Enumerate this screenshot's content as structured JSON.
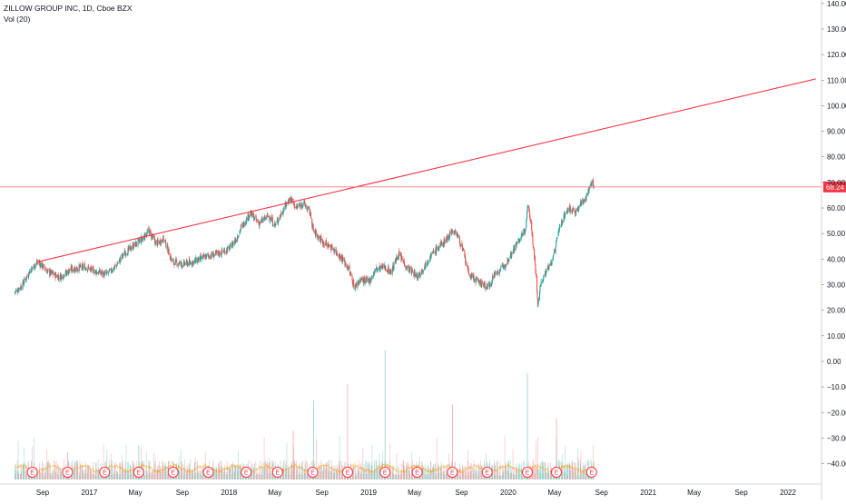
{
  "header": {
    "symbol_line": "ZILLOW GROUP INC, 1D, Cboe BZX",
    "volume_label": "Vol (20)"
  },
  "colors": {
    "up": "#26a69a",
    "down": "#ef5350",
    "trendline": "#f23645",
    "price_line": "#f77c80",
    "earnings_marker": "#f23645",
    "grid": "#e0e3eb",
    "axis_text": "#131722",
    "volume_ma": "#ff9800"
  },
  "chart_data": {
    "type": "candlestick",
    "price_axis": {
      "ticks": [
        140,
        130,
        120,
        110,
        100,
        90,
        80,
        70,
        60,
        50,
        40,
        30,
        20,
        10,
        0,
        -10,
        -20,
        -30,
        -40
      ],
      "tick_labels": [
        "140.00",
        "130.00",
        "120.00",
        "110.00",
        "100.00",
        "90.00",
        "80.00",
        "70.00",
        "60.00",
        "50.00",
        "40.00",
        "30.00",
        "20.00",
        "10.00",
        "0.00",
        "−10.00",
        "−20.00",
        "−30.00",
        "−40.00"
      ],
      "range": [
        -43,
        141
      ]
    },
    "last_price": 68.24,
    "last_price_label": "68.24",
    "time_axis": {
      "ticks": [
        "2016-09-01",
        "2017-01-01",
        "2017-05-01",
        "2017-09-01",
        "2018-01-01",
        "2018-05-01",
        "2018-09-01",
        "2019-01-01",
        "2019-05-01",
        "2019-09-01",
        "2020-01-01",
        "2020-05-01",
        "2020-09-01",
        "2021-01-01",
        "2021-05-01",
        "2021-09-01",
        "2022-01-01"
      ],
      "tick_labels": [
        "Sep",
        "2017",
        "May",
        "Sep",
        "2018",
        "May",
        "Sep",
        "2019",
        "May",
        "Sep",
        "2020",
        "May",
        "Sep",
        "2021",
        "May",
        "Sep",
        "2022"
      ]
    },
    "price_path": [
      [
        "2016-06-20",
        27
      ],
      [
        "2016-07-10",
        30
      ],
      [
        "2016-08-01",
        36
      ],
      [
        "2016-08-20",
        39
      ],
      [
        "2016-09-15",
        35
      ],
      [
        "2016-10-15",
        33
      ],
      [
        "2016-11-15",
        36
      ],
      [
        "2016-12-20",
        37
      ],
      [
        "2017-01-20",
        35
      ],
      [
        "2017-02-15",
        34
      ],
      [
        "2017-03-10",
        37
      ],
      [
        "2017-04-01",
        42
      ],
      [
        "2017-04-25",
        45
      ],
      [
        "2017-05-20",
        48
      ],
      [
        "2017-06-05",
        51
      ],
      [
        "2017-06-25",
        46
      ],
      [
        "2017-07-15",
        48
      ],
      [
        "2017-08-05",
        39
      ],
      [
        "2017-09-01",
        38
      ],
      [
        "2017-10-01",
        39
      ],
      [
        "2017-11-01",
        41
      ],
      [
        "2017-12-01",
        42
      ],
      [
        "2018-01-01",
        44
      ],
      [
        "2018-01-20",
        48
      ],
      [
        "2018-02-01",
        52
      ],
      [
        "2018-02-25",
        58
      ],
      [
        "2018-03-20",
        54
      ],
      [
        "2018-04-15",
        57
      ],
      [
        "2018-05-01",
        53
      ],
      [
        "2018-05-25",
        60
      ],
      [
        "2018-06-10",
        64
      ],
      [
        "2018-06-25",
        60
      ],
      [
        "2018-07-15",
        62
      ],
      [
        "2018-08-01",
        58
      ],
      [
        "2018-08-10",
        51
      ],
      [
        "2018-09-01",
        47
      ],
      [
        "2018-10-01",
        44
      ],
      [
        "2018-10-25",
        40
      ],
      [
        "2018-11-10",
        36
      ],
      [
        "2018-11-25",
        29
      ],
      [
        "2018-12-10",
        32
      ],
      [
        "2019-01-01",
        31
      ],
      [
        "2019-01-20",
        36
      ],
      [
        "2019-02-10",
        37
      ],
      [
        "2019-03-01",
        35
      ],
      [
        "2019-03-20",
        42
      ],
      [
        "2019-04-10",
        37
      ],
      [
        "2019-05-10",
        33
      ],
      [
        "2019-06-10",
        41
      ],
      [
        "2019-07-05",
        45
      ],
      [
        "2019-07-25",
        48
      ],
      [
        "2019-08-05",
        51
      ],
      [
        "2019-08-20",
        50
      ],
      [
        "2019-09-01",
        45
      ],
      [
        "2019-09-20",
        34
      ],
      [
        "2019-10-15",
        31
      ],
      [
        "2019-11-10",
        29
      ],
      [
        "2019-11-25",
        34
      ],
      [
        "2019-12-20",
        37
      ],
      [
        "2020-01-15",
        44
      ],
      [
        "2020-02-05",
        49
      ],
      [
        "2020-02-15",
        52
      ],
      [
        "2020-02-22",
        62
      ],
      [
        "2020-02-28",
        55
      ],
      [
        "2020-03-10",
        40
      ],
      [
        "2020-03-18",
        22
      ],
      [
        "2020-03-25",
        30
      ],
      [
        "2020-04-10",
        36
      ],
      [
        "2020-04-25",
        39
      ],
      [
        "2020-05-10",
        50
      ],
      [
        "2020-05-25",
        57
      ],
      [
        "2020-06-10",
        60
      ],
      [
        "2020-06-25",
        58
      ],
      [
        "2020-07-10",
        62
      ],
      [
        "2020-07-25",
        65
      ],
      [
        "2020-08-05",
        70
      ],
      [
        "2020-08-12",
        68.24
      ]
    ],
    "trendlines": [
      {
        "from": [
          "2016-08-20",
          39
        ],
        "to": [
          "2022-03-15",
          110.5
        ]
      },
      {
        "horizontal": 68.24
      }
    ],
    "earnings_dates": [
      "2016-08-05",
      "2016-11-05",
      "2017-02-10",
      "2017-05-10",
      "2017-08-08",
      "2017-11-08",
      "2018-02-15",
      "2018-05-08",
      "2018-08-08",
      "2018-11-07",
      "2019-02-13",
      "2019-05-08",
      "2019-08-08",
      "2019-11-07",
      "2020-02-20",
      "2020-05-06",
      "2020-08-06"
    ],
    "volume_spikes": [
      [
        "2018-06-18",
        0.36
      ],
      [
        "2018-08-10",
        0.58
      ],
      [
        "2018-11-07",
        0.7
      ],
      [
        "2019-02-13",
        0.95
      ],
      [
        "2019-08-08",
        0.55
      ],
      [
        "2020-02-20",
        0.78
      ],
      [
        "2020-05-06",
        0.45
      ],
      [
        "2017-05-10",
        0.25
      ],
      [
        "2016-11-05",
        0.2
      ]
    ]
  }
}
